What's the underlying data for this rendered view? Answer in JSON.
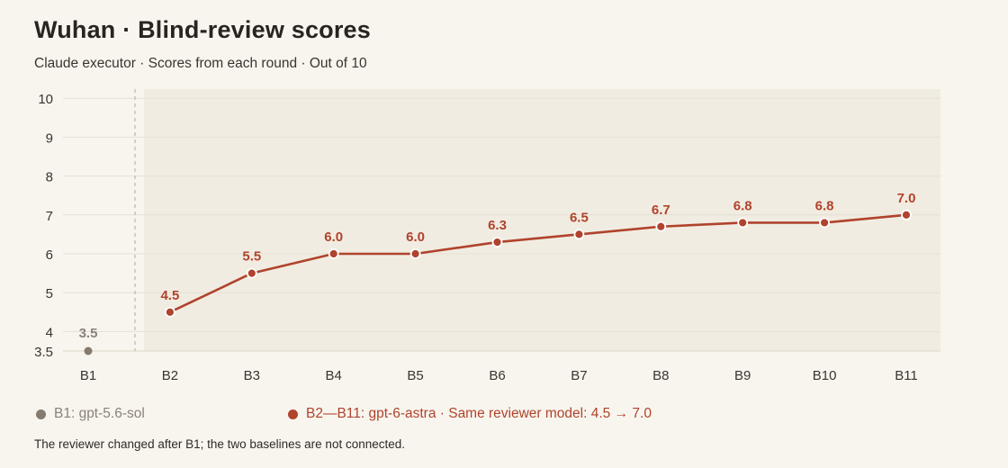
{
  "title": "Wuhan · Blind-review scores",
  "subtitle": "Claude executor · Scores from each round · Out of 10",
  "legend": {
    "b1": "B1: gpt-5.6-sol",
    "main": "B2—B11: gpt-6-astra · Same reviewer model: 4.5 → 7.0"
  },
  "footnote": "The reviewer changed after B1; the two baselines are not connected.",
  "colors": {
    "accent": "#b0432d",
    "baseline_point": "#857b6f",
    "baseline_label": "#8a8279",
    "shaded_region": "#f1ece1",
    "background": "#f8f5ee"
  },
  "chart_data": {
    "type": "line",
    "categories": [
      "B1",
      "B2",
      "B3",
      "B4",
      "B5",
      "B6",
      "B7",
      "B8",
      "B9",
      "B10",
      "B11"
    ],
    "y_ticks": [
      "3.5",
      "4",
      "5",
      "6",
      "7",
      "8",
      "9",
      "10"
    ],
    "ylim": [
      3.5,
      10
    ],
    "grid": true,
    "series": [
      {
        "name": "B1: gpt-5.6-sol",
        "x": [
          "B1"
        ],
        "values": [
          3.5
        ],
        "labels": [
          "3.5"
        ]
      },
      {
        "name": "B2—B11: gpt-6-astra",
        "x": [
          "B2",
          "B3",
          "B4",
          "B5",
          "B6",
          "B7",
          "B8",
          "B9",
          "B10",
          "B11"
        ],
        "values": [
          4.5,
          5.5,
          6.0,
          6.0,
          6.3,
          6.5,
          6.7,
          6.8,
          6.8,
          7.0
        ],
        "labels": [
          "4.5",
          "5.5",
          "6.0",
          "6.0",
          "6.3",
          "6.5",
          "6.7",
          "6.8",
          "6.8",
          "7.0"
        ]
      }
    ],
    "annotations": [
      "dashed divider between B1 and B2",
      "shaded region behind B2—B11"
    ]
  }
}
